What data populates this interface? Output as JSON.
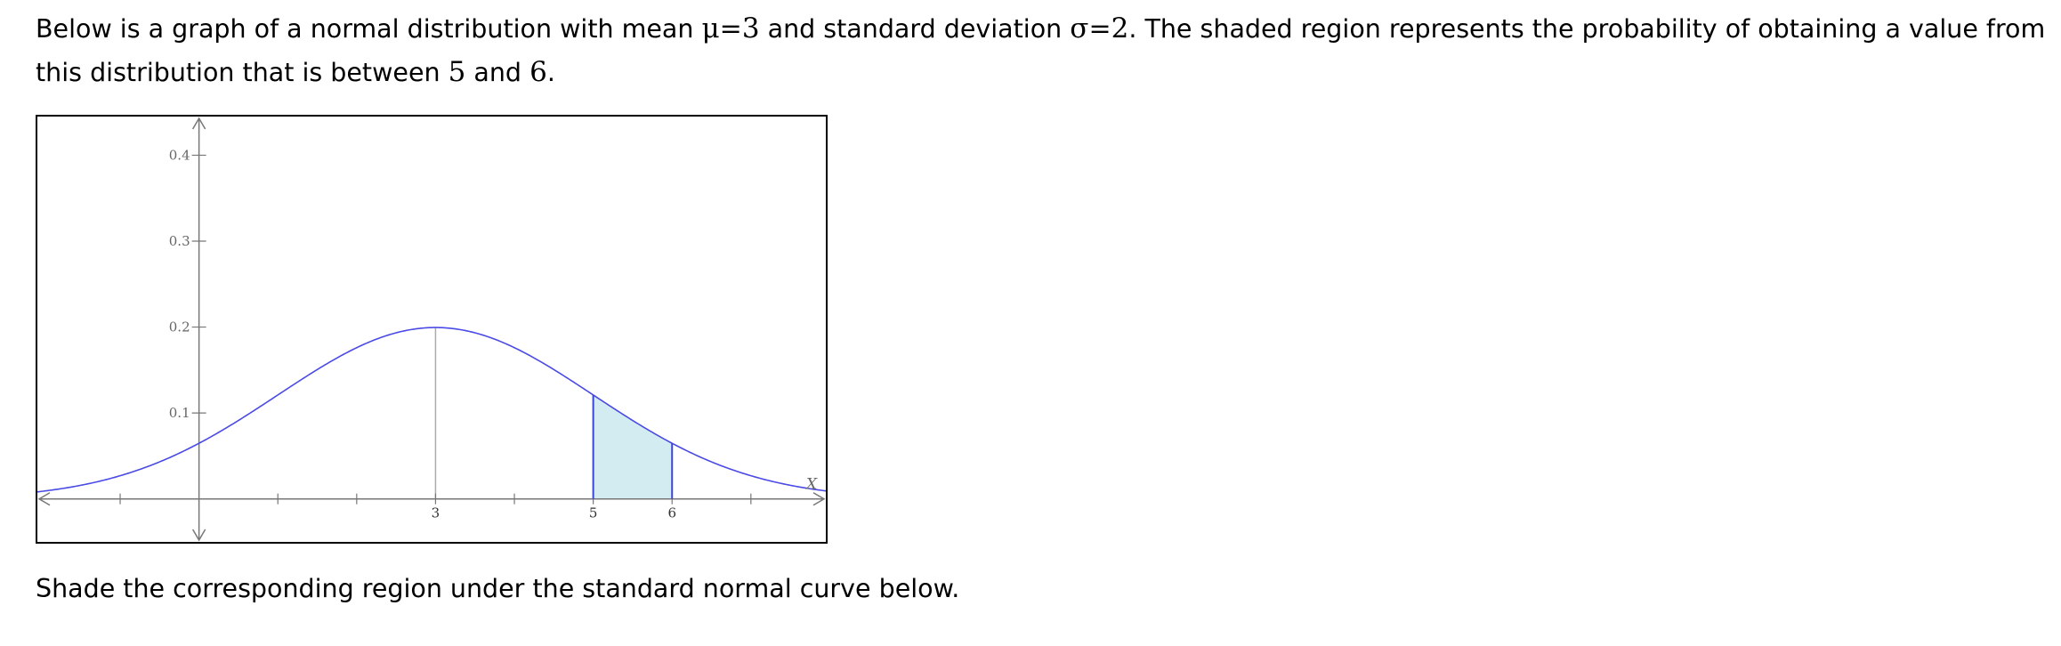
{
  "intro": {
    "part1": "Below is a graph of a normal distribution with mean ",
    "mu_symbol": "μ",
    "eq1": "=",
    "mu_value": "3",
    "part2": " and standard deviation ",
    "sigma_symbol": "σ",
    "eq2": "=",
    "sigma_value": "2",
    "part3": ". The shaded region represents the probability of obtaining a value from this distribution that is between ",
    "lower": "5",
    "part4": " and ",
    "upper": "6",
    "part5": "."
  },
  "prompt": "Shade the corresponding region under the standard normal curve below.",
  "chart_data": {
    "type": "area",
    "distribution": "normal",
    "mean": 3,
    "sd": 2,
    "shaded_interval": [
      5,
      6
    ],
    "x_axis_label": "X",
    "x_tick_labels": [
      "3",
      "5",
      "6"
    ],
    "x_minor_ticks": [
      -1,
      1,
      2,
      4,
      7
    ],
    "y_ticks": [
      0.1,
      0.2,
      0.3,
      0.4
    ],
    "y_tick_labels": [
      "0.1",
      "0.2",
      "0.3",
      "0.4"
    ],
    "xlim": [
      -2.05,
      7.95
    ],
    "ylim": [
      -0.05,
      0.445
    ],
    "colors": {
      "curve": "#4a4ae6",
      "shade_fill": "#d3ecf2",
      "shade_edge": "#3b45d6",
      "axis": "#777777",
      "mean_line": "#aaaaaa",
      "tick_text": "#666666"
    }
  }
}
